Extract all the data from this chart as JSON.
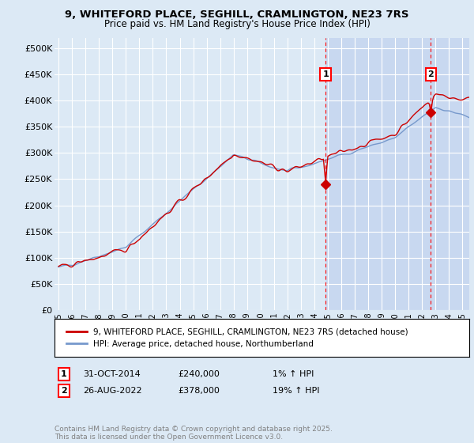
{
  "title_line1": "9, WHITEFORD PLACE, SEGHILL, CRAMLINGTON, NE23 7RS",
  "title_line2": "Price paid vs. HM Land Registry's House Price Index (HPI)",
  "ylabel_ticks": [
    "£0",
    "£50K",
    "£100K",
    "£150K",
    "£200K",
    "£250K",
    "£300K",
    "£350K",
    "£400K",
    "£450K",
    "£500K"
  ],
  "ytick_values": [
    0,
    50000,
    100000,
    150000,
    200000,
    250000,
    300000,
    350000,
    400000,
    450000,
    500000
  ],
  "ylim": [
    0,
    520000
  ],
  "xlim_start": 1994.7,
  "xlim_end": 2025.5,
  "xticks": [
    1995,
    1996,
    1997,
    1998,
    1999,
    2000,
    2001,
    2002,
    2003,
    2004,
    2005,
    2006,
    2007,
    2008,
    2009,
    2010,
    2011,
    2012,
    2013,
    2014,
    2015,
    2016,
    2017,
    2018,
    2019,
    2020,
    2021,
    2022,
    2023,
    2024,
    2025
  ],
  "background_color": "#dce9f5",
  "plot_bg_color": "#dce9f5",
  "shade_color": "#c8d8f0",
  "grid_color": "#ffffff",
  "red_line_color": "#cc0000",
  "blue_line_color": "#7799cc",
  "marker1_x": 2014.83,
  "marker1_y": 240000,
  "marker2_x": 2022.65,
  "marker2_y": 378000,
  "marker1_label": "1",
  "marker2_label": "2",
  "legend_label1": "9, WHITEFORD PLACE, SEGHILL, CRAMLINGTON, NE23 7RS (detached house)",
  "legend_label2": "HPI: Average price, detached house, Northumberland",
  "ann1_date": "31-OCT-2014",
  "ann1_price": "£240,000",
  "ann1_hpi": "1% ↑ HPI",
  "ann2_date": "26-AUG-2022",
  "ann2_price": "£378,000",
  "ann2_hpi": "19% ↑ HPI",
  "footer": "Contains HM Land Registry data © Crown copyright and database right 2025.\nThis data is licensed under the Open Government Licence v3.0."
}
